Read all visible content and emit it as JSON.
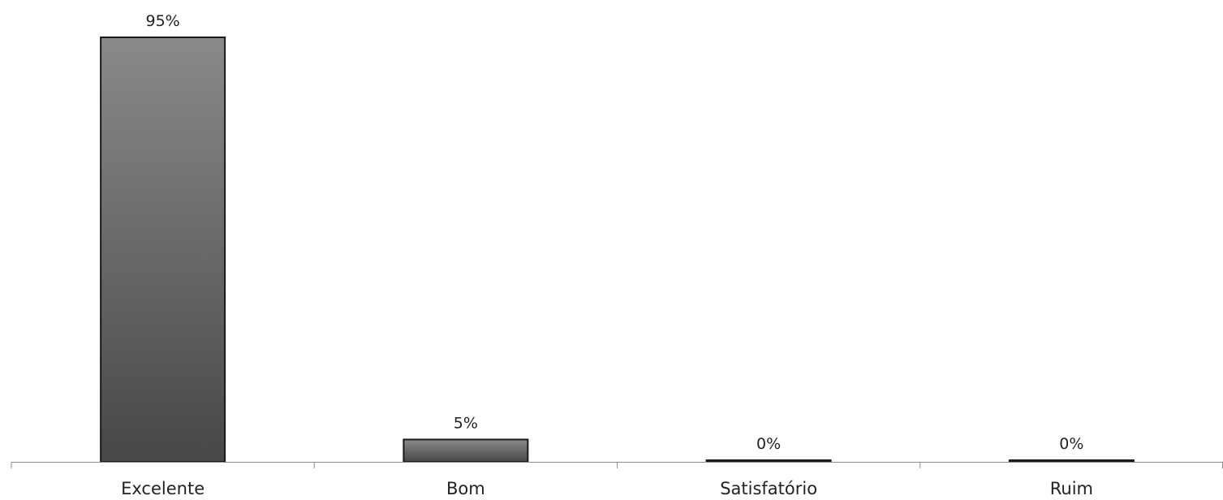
{
  "chart_data": {
    "type": "bar",
    "categories": [
      "Excelente",
      "Bom",
      "Satisfatório",
      "Ruim"
    ],
    "values": [
      95,
      5,
      0,
      0
    ],
    "data_labels": [
      "95%",
      "5%",
      "0%",
      "0%"
    ],
    "title": "",
    "xlabel": "",
    "ylabel": "",
    "ylim": [
      0,
      100
    ],
    "grid": false,
    "legend": "none",
    "bar_fill_top": "#8a8a8a",
    "bar_fill_bottom": "#474747",
    "bar_stroke": "#1a1a1a",
    "axis_color": "#8c8c8c"
  }
}
